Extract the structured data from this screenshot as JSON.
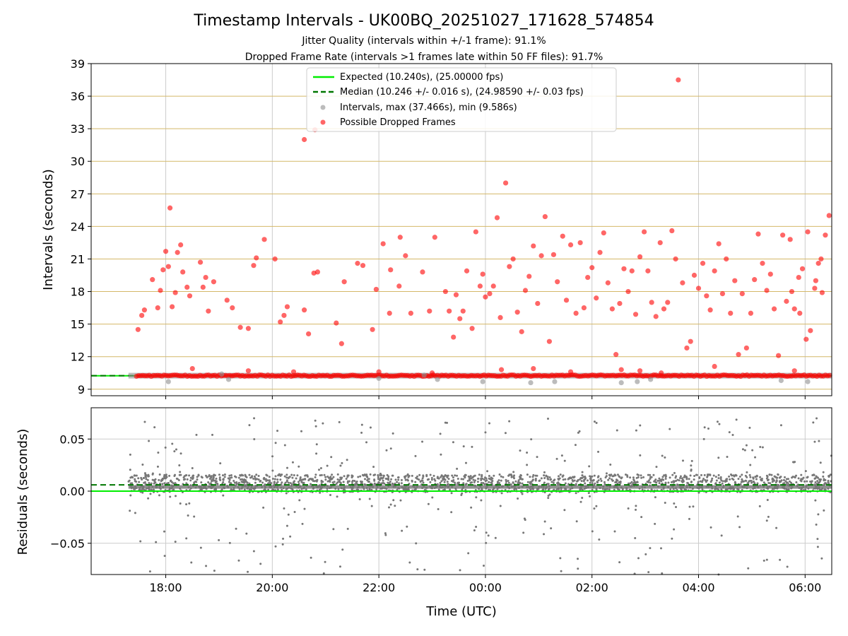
{
  "colors": {
    "expected": "#00ee00",
    "median": "#007700",
    "intervals": "#909090",
    "dropped": "#ff0000",
    "residual_points": "#777777",
    "minor_grid": "#d4b868",
    "grid": "#cccccc"
  },
  "chart_data": [
    {
      "type": "scatter",
      "title": "Timestamp Intervals - UK00BQ_20251027_171628_574854",
      "subtitle_1": "Jitter Quality (intervals within +/-1 frame): 91.1%",
      "subtitle_2": "Dropped Frame Rate (intervals >1 frames late within 50 FF files): 91.7%",
      "xlabel": "",
      "ylabel": "Intervals (seconds)",
      "x_unit": "hours since 00:00 UTC (negative = previous day)",
      "xlim": [
        -7.4,
        6.5
      ],
      "ylim": [
        8.4,
        39
      ],
      "xticks": [
        -6,
        -4,
        -2,
        0,
        2,
        4,
        6
      ],
      "xtick_labels": [
        "18:00",
        "20:00",
        "22:00",
        "00:00",
        "02:00",
        "04:00",
        "06:00"
      ],
      "yticks": [
        9,
        12,
        15,
        18,
        21,
        24,
        27,
        30,
        33,
        36,
        39
      ],
      "ytick_labels": [
        "9",
        "12",
        "15",
        "18",
        "21",
        "24",
        "27",
        "30",
        "33",
        "36",
        "39"
      ],
      "legend_position": "top-center",
      "legend": [
        "Expected (10.240s), (25.00000 fps)",
        "Median (10.246 +/- 0.016 s), (24.98590 +/- 0.03 fps)",
        "Intervals, max (37.466s), min (9.586s)",
        "Possible Dropped Frames"
      ],
      "expected_value": 10.24,
      "median_value": 10.246,
      "baseline": {
        "name": "Intervals",
        "start": -6.7,
        "end": 6.5,
        "value": 10.25
      },
      "series": [
        {
          "name": "Possible Dropped Frames",
          "points": [
            [
              -6.52,
              14.5
            ],
            [
              -6.45,
              15.8
            ],
            [
              -6.4,
              16.3
            ],
            [
              -6.25,
              19.1
            ],
            [
              -6.15,
              16.5
            ],
            [
              -6.1,
              18.1
            ],
            [
              -6.05,
              20.0
            ],
            [
              -6.0,
              21.7
            ],
            [
              -5.95,
              20.3
            ],
            [
              -5.92,
              25.7
            ],
            [
              -5.88,
              16.6
            ],
            [
              -5.82,
              17.9
            ],
            [
              -5.78,
              21.6
            ],
            [
              -5.72,
              22.3
            ],
            [
              -5.68,
              19.8
            ],
            [
              -5.6,
              18.4
            ],
            [
              -5.55,
              17.6
            ],
            [
              -5.35,
              20.7
            ],
            [
              -5.3,
              18.4
            ],
            [
              -5.25,
              19.3
            ],
            [
              -5.2,
              16.2
            ],
            [
              -5.1,
              18.9
            ],
            [
              -4.85,
              17.2
            ],
            [
              -4.75,
              16.5
            ],
            [
              -4.6,
              14.7
            ],
            [
              -4.45,
              14.6
            ],
            [
              -4.35,
              20.4
            ],
            [
              -4.3,
              21.1
            ],
            [
              -4.15,
              22.8
            ],
            [
              -3.95,
              21.0
            ],
            [
              -3.85,
              15.2
            ],
            [
              -3.78,
              15.8
            ],
            [
              -3.72,
              16.6
            ],
            [
              -3.4,
              16.3
            ],
            [
              -3.32,
              14.1
            ],
            [
              -3.22,
              19.7
            ],
            [
              -3.15,
              19.8
            ],
            [
              -3.2,
              32.9
            ],
            [
              -3.4,
              32.0
            ],
            [
              -2.8,
              15.1
            ],
            [
              -2.7,
              13.2
            ],
            [
              -2.65,
              18.9
            ],
            [
              -2.4,
              20.6
            ],
            [
              -2.3,
              20.4
            ],
            [
              -2.12,
              14.5
            ],
            [
              -2.05,
              18.2
            ],
            [
              -1.92,
              22.4
            ],
            [
              -1.8,
              16.0
            ],
            [
              -1.78,
              20.0
            ],
            [
              -1.62,
              18.5
            ],
            [
              -1.6,
              23.0
            ],
            [
              -1.5,
              21.3
            ],
            [
              -1.4,
              16.0
            ],
            [
              -1.18,
              19.8
            ],
            [
              -1.05,
              16.2
            ],
            [
              -0.95,
              23.0
            ],
            [
              -0.75,
              18.0
            ],
            [
              -0.68,
              16.2
            ],
            [
              -0.6,
              13.8
            ],
            [
              -0.55,
              17.7
            ],
            [
              -0.48,
              15.5
            ],
            [
              -0.42,
              16.2
            ],
            [
              -0.35,
              19.9
            ],
            [
              -0.25,
              14.6
            ],
            [
              -0.18,
              23.5
            ],
            [
              -0.1,
              18.5
            ],
            [
              -0.05,
              19.6
            ],
            [
              0.0,
              17.5
            ],
            [
              0.08,
              17.8
            ],
            [
              0.15,
              18.5
            ],
            [
              0.22,
              24.8
            ],
            [
              0.28,
              15.6
            ],
            [
              0.38,
              28.0
            ],
            [
              0.45,
              20.3
            ],
            [
              0.52,
              21.0
            ],
            [
              0.6,
              16.1
            ],
            [
              0.68,
              14.3
            ],
            [
              0.75,
              18.1
            ],
            [
              0.82,
              19.4
            ],
            [
              0.9,
              22.2
            ],
            [
              0.98,
              16.9
            ],
            [
              1.05,
              21.3
            ],
            [
              1.12,
              24.9
            ],
            [
              1.2,
              13.4
            ],
            [
              1.28,
              21.4
            ],
            [
              1.35,
              18.9
            ],
            [
              1.45,
              23.1
            ],
            [
              1.52,
              17.2
            ],
            [
              1.6,
              22.3
            ],
            [
              1.7,
              16.0
            ],
            [
              1.78,
              22.5
            ],
            [
              1.85,
              16.5
            ],
            [
              1.92,
              19.3
            ],
            [
              2.0,
              20.2
            ],
            [
              2.08,
              17.4
            ],
            [
              2.15,
              21.6
            ],
            [
              2.22,
              23.4
            ],
            [
              2.3,
              18.8
            ],
            [
              2.38,
              16.4
            ],
            [
              2.45,
              12.2
            ],
            [
              2.52,
              16.9
            ],
            [
              2.6,
              20.1
            ],
            [
              2.68,
              18.0
            ],
            [
              2.75,
              19.9
            ],
            [
              2.82,
              15.9
            ],
            [
              2.9,
              21.2
            ],
            [
              2.98,
              23.5
            ],
            [
              3.05,
              19.9
            ],
            [
              3.12,
              17.0
            ],
            [
              3.2,
              15.7
            ],
            [
              3.28,
              22.5
            ],
            [
              3.35,
              16.4
            ],
            [
              3.42,
              17.0
            ],
            [
              3.5,
              23.6
            ],
            [
              3.57,
              21.0
            ],
            [
              3.62,
              37.5
            ],
            [
              3.7,
              18.8
            ],
            [
              3.78,
              12.8
            ],
            [
              3.85,
              13.4
            ],
            [
              3.92,
              19.5
            ],
            [
              4.0,
              18.3
            ],
            [
              4.08,
              20.6
            ],
            [
              4.15,
              17.6
            ],
            [
              4.22,
              16.3
            ],
            [
              4.3,
              19.9
            ],
            [
              4.38,
              22.4
            ],
            [
              4.45,
              17.8
            ],
            [
              4.52,
              21.0
            ],
            [
              4.6,
              16.0
            ],
            [
              4.68,
              19.0
            ],
            [
              4.75,
              12.2
            ],
            [
              4.82,
              17.8
            ],
            [
              4.9,
              12.8
            ],
            [
              4.98,
              16.0
            ],
            [
              5.05,
              19.1
            ],
            [
              5.12,
              23.3
            ],
            [
              5.2,
              20.6
            ],
            [
              5.28,
              18.1
            ],
            [
              5.35,
              19.6
            ],
            [
              5.42,
              16.4
            ],
            [
              5.5,
              12.1
            ],
            [
              5.58,
              23.2
            ],
            [
              5.65,
              17.1
            ],
            [
              5.72,
              22.8
            ],
            [
              5.8,
              16.4
            ],
            [
              5.88,
              19.3
            ],
            [
              5.95,
              20.1
            ],
            [
              6.02,
              13.6
            ],
            [
              6.1,
              14.4
            ],
            [
              6.18,
              18.3
            ],
            [
              6.25,
              20.6
            ],
            [
              6.32,
              17.9
            ],
            [
              6.38,
              23.2
            ],
            [
              6.45,
              25.0
            ],
            [
              5.75,
              18.0
            ],
            [
              5.9,
              16.0
            ],
            [
              6.05,
              23.5
            ],
            [
              6.2,
              19.0
            ],
            [
              6.3,
              21.0
            ],
            [
              -5.5,
              10.9
            ],
            [
              -4.45,
              10.7
            ],
            [
              -3.6,
              10.6
            ],
            [
              0.3,
              10.8
            ],
            [
              0.9,
              10.9
            ],
            [
              1.6,
              10.6
            ],
            [
              2.55,
              10.8
            ],
            [
              2.9,
              10.7
            ],
            [
              4.3,
              11.1
            ],
            [
              5.8,
              10.7
            ],
            [
              -2.0,
              10.6
            ],
            [
              -1.0,
              10.5
            ],
            [
              3.3,
              10.5
            ]
          ]
        },
        {
          "name": "Intervals (outliers)",
          "points": [
            [
              -5.95,
              9.7
            ],
            [
              -4.82,
              9.9
            ],
            [
              -2.0,
              10.0
            ],
            [
              -0.9,
              9.9
            ],
            [
              -0.05,
              9.7
            ],
            [
              0.85,
              9.6
            ],
            [
              1.3,
              9.7
            ],
            [
              2.55,
              9.6
            ],
            [
              2.85,
              9.7
            ],
            [
              3.1,
              9.9
            ],
            [
              5.55,
              9.8
            ],
            [
              6.05,
              9.7
            ],
            [
              -4.95,
              10.4
            ],
            [
              -1.15,
              10.3
            ]
          ]
        }
      ]
    },
    {
      "type": "scatter",
      "title": "",
      "xlabel": "Time (UTC)",
      "ylabel": "Residuals (seconds)",
      "xlim": [
        -7.4,
        6.5
      ],
      "ylim": [
        -0.08,
        0.08
      ],
      "xticks": [
        -6,
        -4,
        -2,
        0,
        2,
        4,
        6
      ],
      "xtick_labels": [
        "18:00",
        "20:00",
        "22:00",
        "00:00",
        "02:00",
        "04:00",
        "06:00"
      ],
      "yticks": [
        -0.05,
        0.0,
        0.05
      ],
      "ytick_labels": [
        "−0.05",
        "0.00",
        "0.05"
      ],
      "expected_value": 0.0,
      "median_value": 0.006,
      "band": {
        "start": -6.7,
        "end": 6.5,
        "center": 0.004,
        "lower": -0.001,
        "upper": 0.016,
        "density_per_hour": 140
      },
      "scatter_spread": {
        "lower": -0.08,
        "upper": 0.07,
        "density_per_hour": 30
      }
    }
  ]
}
